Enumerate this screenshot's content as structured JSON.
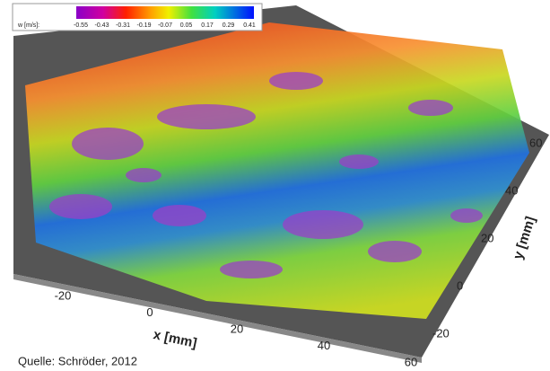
{
  "colorbar": {
    "label": "w [m/s]:",
    "ticks": [
      "-0.55",
      "-0.43",
      "-0.31",
      "-0.19",
      "-0.07",
      "0.05",
      "0.17",
      "0.29",
      "0.41"
    ]
  },
  "x_axis": {
    "label": "x [mm]",
    "ticks": [
      "-20",
      "0",
      "20",
      "40",
      "60"
    ]
  },
  "y_axis": {
    "label": "y [mm]",
    "ticks": [
      "-20",
      "0",
      "20",
      "40",
      "60"
    ]
  },
  "source": "Quelle: Schröder, 2012"
}
